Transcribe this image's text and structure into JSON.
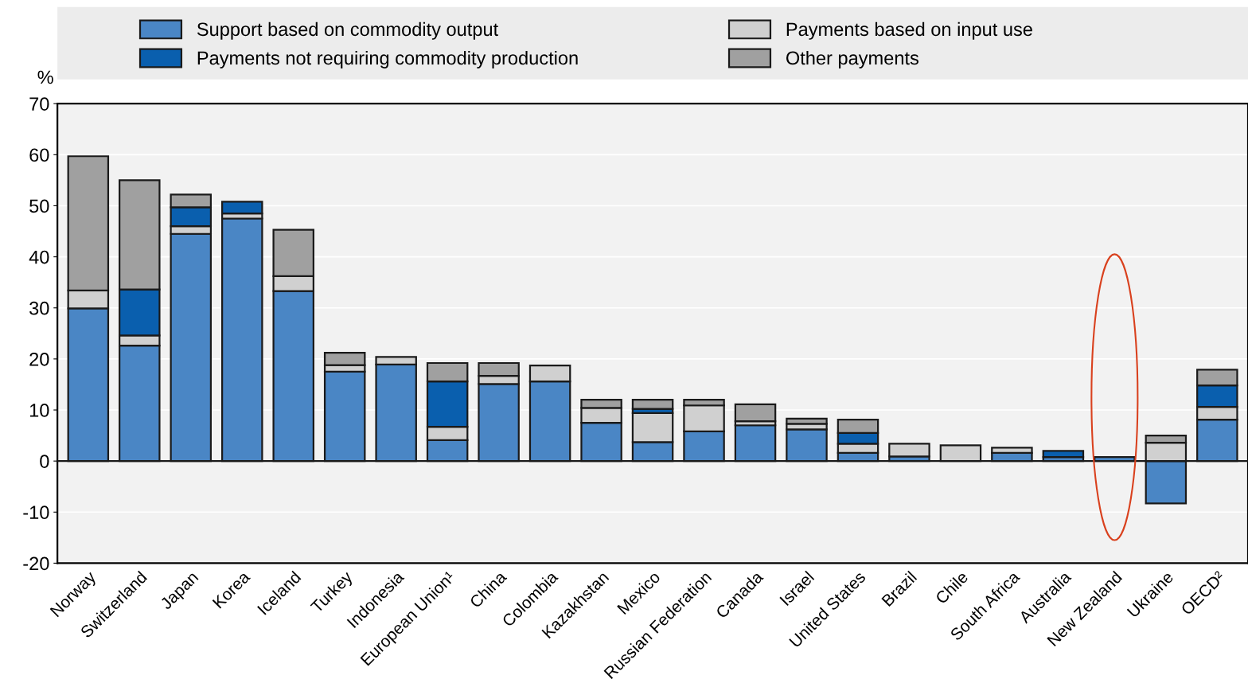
{
  "chart_data": {
    "type": "bar",
    "stacked": true,
    "ylabel": "%",
    "categories": [
      "Norway",
      "Switzerland",
      "Japan",
      "Korea",
      "Iceland",
      "Turkey",
      "Indonesia",
      "European Union¹",
      "China",
      "Colombia",
      "Kazakhstan",
      "Mexico",
      "Russian Federation",
      "Canada",
      "Israel",
      "United States",
      "Brazil",
      "Chile",
      "South Africa",
      "Australia",
      "New Zealand",
      "Ukraine",
      "OECD²"
    ],
    "series": [
      {
        "name": "Support based on commodity output",
        "color": "#4a86c5",
        "values": [
          29.9,
          22.6,
          44.5,
          47.5,
          33.3,
          17.5,
          18.9,
          4.1,
          15.1,
          15.6,
          7.5,
          3.7,
          5.8,
          7.0,
          6.2,
          1.6,
          0.9,
          null,
          1.6,
          0.8,
          0.8,
          -8.3,
          8.1
        ]
      },
      {
        "name": "Payments based on input use",
        "color": "#d0d0d0",
        "values": [
          3.5,
          2.0,
          1.5,
          1.0,
          2.9,
          1.3,
          1.5,
          2.6,
          1.6,
          3.1,
          2.9,
          5.7,
          5.1,
          0.8,
          1.1,
          1.8,
          2.5,
          3.1,
          1.0,
          null,
          0,
          3.6,
          2.5
        ]
      },
      {
        "name": "Payments not requiring commodity production",
        "color": "#0a5fae",
        "values": [
          0,
          9.0,
          3.7,
          2.3,
          0,
          0,
          0,
          8.9,
          0,
          0,
          0,
          0.8,
          0,
          0,
          0,
          2.1,
          0,
          0,
          0,
          1.2,
          0,
          0,
          4.2
        ]
      },
      {
        "name": "Other payments",
        "color": "#a0a0a0",
        "values": [
          26.3,
          21.4,
          2.5,
          0,
          9.1,
          2.4,
          0,
          3.6,
          2.5,
          0,
          1.6,
          1.8,
          1.1,
          3.3,
          1.0,
          2.6,
          0,
          0,
          0,
          0,
          0,
          1.4,
          3.1
        ]
      }
    ],
    "ylim": [
      -20,
      70
    ],
    "yticks": [
      -20,
      -10,
      0,
      10,
      20,
      30,
      40,
      50,
      60,
      70
    ],
    "grid": "y",
    "legend": "top"
  }
}
